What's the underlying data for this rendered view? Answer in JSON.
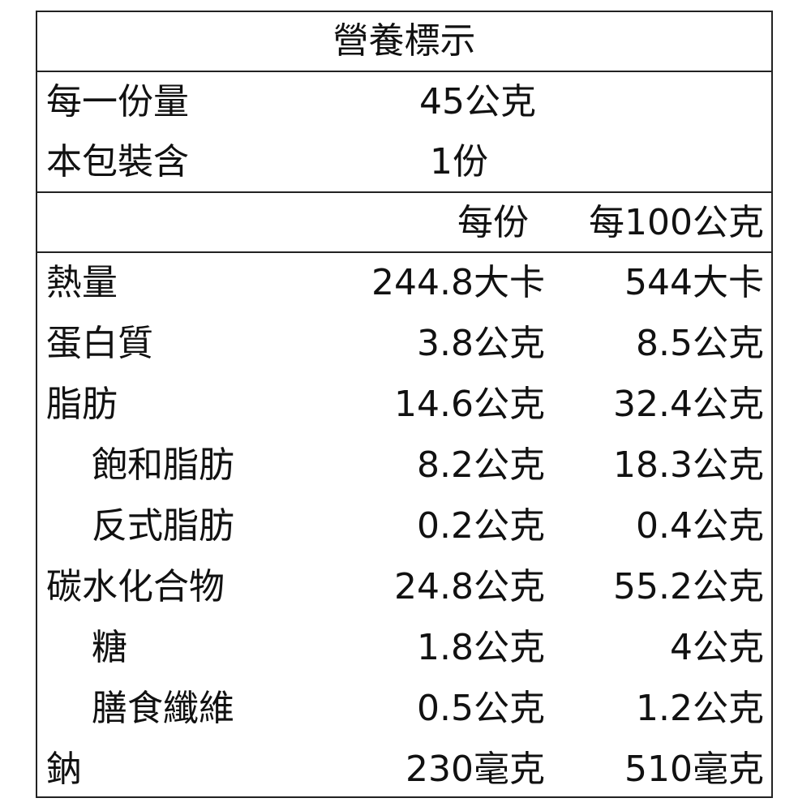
{
  "title": "營養標示",
  "serving": {
    "label": "每一份量",
    "value": "45公克"
  },
  "package": {
    "label": "本包裝含",
    "value": "1份"
  },
  "header": {
    "per_serving": "每份",
    "per_100g": "每100公克"
  },
  "rows": [
    {
      "label": "熱量",
      "per_serving": "244.8大卡",
      "per_100g": "544大卡",
      "indent": false
    },
    {
      "label": "蛋白質",
      "per_serving": "3.8公克",
      "per_100g": "8.5公克",
      "indent": false
    },
    {
      "label": "脂肪",
      "per_serving": "14.6公克",
      "per_100g": "32.4公克",
      "indent": false
    },
    {
      "label": "飽和脂肪",
      "per_serving": "8.2公克",
      "per_100g": "18.3公克",
      "indent": true
    },
    {
      "label": "反式脂肪",
      "per_serving": "0.2公克",
      "per_100g": "0.4公克",
      "indent": true
    },
    {
      "label": "碳水化合物",
      "per_serving": "24.8公克",
      "per_100g": "55.2公克",
      "indent": false
    },
    {
      "label": "糖",
      "per_serving": "1.8公克",
      "per_100g": "4公克",
      "indent": true
    },
    {
      "label": "膳食纖維",
      "per_serving": "0.5公克",
      "per_100g": "1.2公克",
      "indent": true
    },
    {
      "label": "鈉",
      "per_serving": "230毫克",
      "per_100g": "510毫克",
      "indent": false
    }
  ]
}
